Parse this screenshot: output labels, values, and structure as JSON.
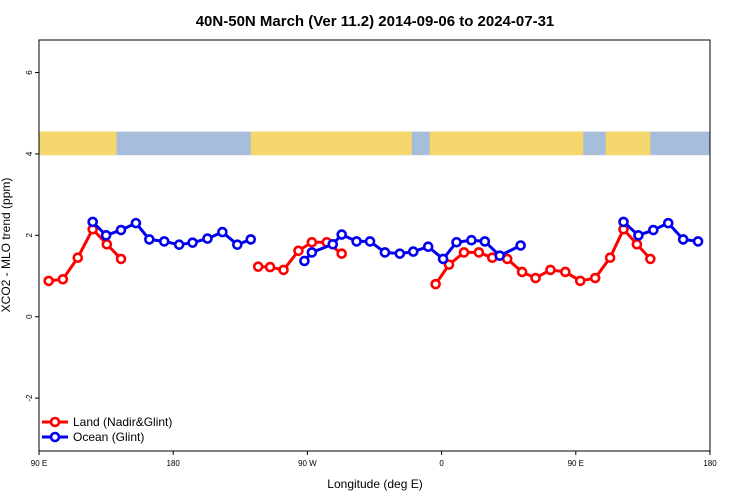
{
  "chart_data": {
    "type": "line",
    "title": "40N-50N March (Ver 11.2)   2014-09-06 to 2024-07-31",
    "xlabel": "Longitude (deg E)",
    "ylabel": "XCO2 - MLO trend (ppm)",
    "xlim": [
      90,
      540
    ],
    "ylim": [
      -3.3,
      6.8
    ],
    "xticks": [
      {
        "value": 90,
        "label": "90 E"
      },
      {
        "value": 180,
        "label": "180"
      },
      {
        "value": 270,
        "label": "90 W"
      },
      {
        "value": 360,
        "label": "0"
      },
      {
        "value": 450,
        "label": "90 E"
      },
      {
        "value": 540,
        "label": "180"
      }
    ],
    "yticks": [
      {
        "value": -2,
        "label": "-2"
      },
      {
        "value": 0,
        "label": "0"
      },
      {
        "value": 2,
        "label": "2"
      },
      {
        "value": 4,
        "label": "4"
      },
      {
        "value": 6,
        "label": "6"
      }
    ],
    "legend_position": "bottom-left",
    "map_strip": {
      "y_bottom": 3.97,
      "y_top": 4.55,
      "land_color": "#f5d76e",
      "ocean_color": "#a7bddc"
    },
    "series": [
      {
        "name": "Land (Nadir&Glint)",
        "color": "#ff0000",
        "segments": [
          [
            [
              96.5,
              0.88
            ],
            [
              106,
              0.92
            ],
            [
              116,
              1.45
            ],
            [
              126,
              2.15
            ],
            [
              135.5,
              1.78
            ],
            [
              145,
              1.42
            ]
          ],
          [
            [
              237,
              1.23
            ],
            [
              245,
              1.22
            ],
            [
              254,
              1.15
            ],
            [
              264,
              1.62
            ],
            [
              273,
              1.83
            ],
            [
              283,
              1.83
            ],
            [
              293,
              1.55
            ]
          ],
          [
            [
              356,
              0.8
            ],
            [
              365,
              1.28
            ],
            [
              375,
              1.58
            ],
            [
              385,
              1.58
            ],
            [
              394,
              1.45
            ],
            [
              404,
              1.42
            ],
            [
              414,
              1.1
            ],
            [
              423,
              0.95
            ],
            [
              433,
              1.15
            ],
            [
              443,
              1.1
            ],
            [
              453,
              0.88
            ],
            [
              463,
              0.95
            ],
            [
              473,
              1.45
            ],
            [
              482,
              2.15
            ],
            [
              491,
              1.78
            ],
            [
              500,
              1.42
            ]
          ]
        ]
      },
      {
        "name": "Ocean (Glint)",
        "color": "#0000ee",
        "segments": [
          [
            [
              126,
              2.33
            ],
            [
              135,
              2.0
            ],
            [
              145,
              2.13
            ],
            [
              155,
              2.3
            ],
            [
              164,
              1.9
            ],
            [
              174,
              1.85
            ],
            [
              184,
              1.77
            ],
            [
              193,
              1.82
            ],
            [
              203,
              1.92
            ],
            [
              213,
              2.08
            ],
            [
              223,
              1.77
            ],
            [
              232,
              1.9
            ]
          ],
          [
            [
              268,
              1.37
            ],
            [
              273,
              1.58
            ],
            [
              287,
              1.78
            ],
            [
              293,
              2.02
            ],
            [
              303,
              1.85
            ],
            [
              312,
              1.85
            ],
            [
              322,
              1.58
            ],
            [
              332,
              1.55
            ],
            [
              341,
              1.6
            ],
            [
              351,
              1.72
            ],
            [
              361,
              1.42
            ],
            [
              370,
              1.83
            ],
            [
              380,
              1.88
            ],
            [
              389,
              1.85
            ],
            [
              399,
              1.5
            ],
            [
              413,
              1.75
            ]
          ]
        ]
      },
      {
        "name": "",
        "color": "#0000ee",
        "segments": [
          [
            [
              482,
              2.33
            ],
            [
              492,
              2.0
            ],
            [
              502,
              2.13
            ],
            [
              512,
              2.3
            ],
            [
              522,
              1.9
            ],
            [
              532,
              1.85
            ]
          ]
        ]
      }
    ]
  }
}
